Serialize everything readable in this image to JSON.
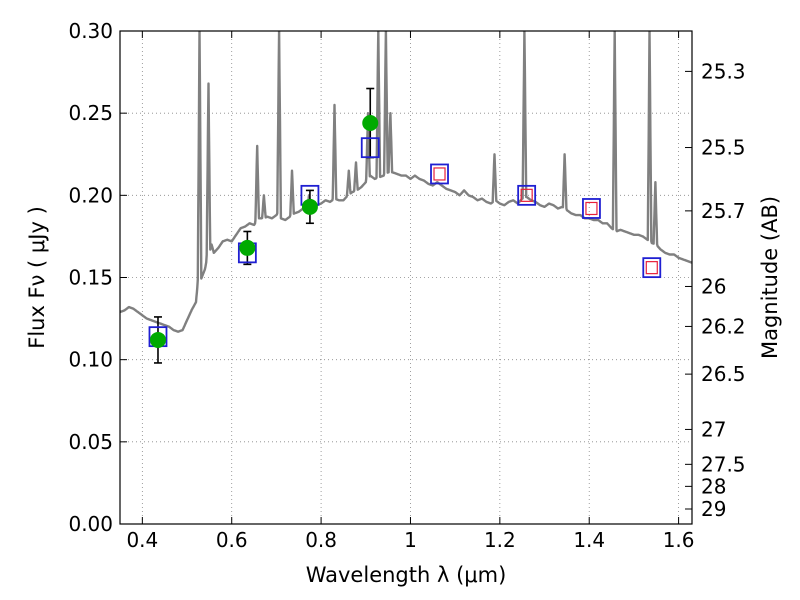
{
  "chart_data": {
    "type": "scatter",
    "title": "",
    "xlabel": "Wavelength  λ (μm)",
    "ylabel": "Flux  Fν  ( μJy )",
    "y2label": "Magnitude (AB)",
    "xlim": [
      0.35,
      1.63
    ],
    "ylim": [
      0.0,
      0.3
    ],
    "grid": true,
    "x_ticks": [
      0.4,
      0.6,
      0.8,
      1.0,
      1.2,
      1.4,
      1.6
    ],
    "x_tick_labels": [
      "0.4",
      "0.6",
      "0.8",
      "1",
      "1.2",
      "1.4",
      "1.6"
    ],
    "y_ticks": [
      0.0,
      0.05,
      0.1,
      0.15,
      0.2,
      0.25,
      0.3
    ],
    "y_tick_labels": [
      "0.00",
      "0.05",
      "0.10",
      "0.15",
      "0.20",
      "0.25",
      "0.30"
    ],
    "y2_ticks": [
      {
        "label": "25.3",
        "mag": 25.3
      },
      {
        "label": "25.5",
        "mag": 25.5
      },
      {
        "label": "25.7",
        "mag": 25.7
      },
      {
        "label": "26",
        "mag": 26.0
      },
      {
        "label": "26.2",
        "mag": 26.2
      },
      {
        "label": "26.5",
        "mag": 26.5
      },
      {
        "label": "27",
        "mag": 27.0
      },
      {
        "label": "27.5",
        "mag": 27.5
      },
      {
        "label": "28",
        "mag": 28.0
      },
      {
        "label": "29",
        "mag": 29.0
      }
    ],
    "colors": {
      "observed": "#00aa00",
      "errorbar": "#000000",
      "model_box": "#1f1fd2",
      "model_inner": "#e8203a",
      "spectrum": "#808080",
      "grid": "#888888"
    },
    "series": [
      {
        "name": "observed",
        "points": [
          {
            "x": 0.435,
            "y": 0.112,
            "err": 0.014
          },
          {
            "x": 0.635,
            "y": 0.168,
            "err": 0.01
          },
          {
            "x": 0.775,
            "y": 0.193,
            "err": 0.01
          },
          {
            "x": 0.91,
            "y": 0.244,
            "err": 0.021
          }
        ]
      },
      {
        "name": "model",
        "points": [
          {
            "x": 0.435,
            "y": 0.114,
            "inner": false
          },
          {
            "x": 0.635,
            "y": 0.165,
            "inner": false
          },
          {
            "x": 0.775,
            "y": 0.2,
            "inner": false
          },
          {
            "x": 0.91,
            "y": 0.229,
            "inner": false
          },
          {
            "x": 1.065,
            "y": 0.213,
            "inner": true
          },
          {
            "x": 1.26,
            "y": 0.2,
            "inner": true
          },
          {
            "x": 1.405,
            "y": 0.192,
            "inner": true
          },
          {
            "x": 1.54,
            "y": 0.156,
            "inner": true
          }
        ]
      },
      {
        "name": "spectrum",
        "x": [
          0.35,
          0.36,
          0.37,
          0.38,
          0.39,
          0.4,
          0.41,
          0.42,
          0.43,
          0.44,
          0.45,
          0.46,
          0.47,
          0.48,
          0.49,
          0.5,
          0.51,
          0.52,
          0.525,
          0.53,
          0.54,
          0.545,
          0.55,
          0.555,
          0.56,
          0.57,
          0.58,
          0.59,
          0.6,
          0.61,
          0.62,
          0.63,
          0.64,
          0.65,
          0.655,
          0.66,
          0.67,
          0.68,
          0.69,
          0.7,
          0.705,
          0.71,
          0.72,
          0.73,
          0.74,
          0.75,
          0.76,
          0.77,
          0.78,
          0.79,
          0.8,
          0.81,
          0.82,
          0.83,
          0.84,
          0.85,
          0.86,
          0.87,
          0.88,
          0.89,
          0.9,
          0.91,
          0.92,
          0.93,
          0.94,
          0.95,
          0.96,
          0.97,
          0.98,
          0.99,
          1.0,
          1.01,
          1.02,
          1.03,
          1.04,
          1.05,
          1.06,
          1.07,
          1.08,
          1.09,
          1.1,
          1.11,
          1.12,
          1.13,
          1.14,
          1.15,
          1.16,
          1.17,
          1.18,
          1.19,
          1.2,
          1.21,
          1.22,
          1.23,
          1.24,
          1.25,
          1.26,
          1.27,
          1.28,
          1.29,
          1.3,
          1.31,
          1.32,
          1.33,
          1.34,
          1.35,
          1.36,
          1.37,
          1.38,
          1.39,
          1.4,
          1.41,
          1.42,
          1.43,
          1.44,
          1.45,
          1.46,
          1.47,
          1.48,
          1.49,
          1.5,
          1.51,
          1.52,
          1.53,
          1.54,
          1.55,
          1.56,
          1.57,
          1.58,
          1.59,
          1.6,
          1.61,
          1.62,
          1.63
        ],
        "y": [
          0.129,
          0.13,
          0.132,
          0.131,
          0.129,
          0.127,
          0.125,
          0.124,
          0.123,
          0.122,
          0.121,
          0.12,
          0.118,
          0.117,
          0.118,
          0.124,
          0.13,
          0.135,
          0.15,
          0.148,
          0.155,
          0.162,
          0.165,
          0.17,
          0.165,
          0.168,
          0.172,
          0.173,
          0.172,
          0.176,
          0.18,
          0.181,
          0.183,
          0.182,
          0.184,
          0.186,
          0.186,
          0.187,
          0.186,
          0.188,
          0.19,
          0.186,
          0.185,
          0.187,
          0.189,
          0.19,
          0.192,
          0.192,
          0.193,
          0.194,
          0.195,
          0.197,
          0.196,
          0.198,
          0.197,
          0.197,
          0.2,
          0.202,
          0.203,
          0.205,
          0.208,
          0.212,
          0.21,
          0.211,
          0.212,
          0.214,
          0.214,
          0.213,
          0.212,
          0.212,
          0.21,
          0.212,
          0.21,
          0.209,
          0.207,
          0.206,
          0.208,
          0.206,
          0.204,
          0.203,
          0.202,
          0.2,
          0.203,
          0.2,
          0.199,
          0.197,
          0.198,
          0.196,
          0.195,
          0.197,
          0.195,
          0.194,
          0.196,
          0.197,
          0.195,
          0.198,
          0.199,
          0.197,
          0.196,
          0.194,
          0.193,
          0.195,
          0.194,
          0.192,
          0.193,
          0.191,
          0.189,
          0.188,
          0.188,
          0.186,
          0.186,
          0.185,
          0.185,
          0.183,
          0.183,
          0.18,
          0.178,
          0.179,
          0.178,
          0.177,
          0.176,
          0.176,
          0.175,
          0.173,
          0.171,
          0.17,
          0.167,
          0.165,
          0.164,
          0.164,
          0.162,
          0.161,
          0.16,
          0.159
        ],
        "lines": [
          {
            "x": 0.528,
            "peak": 0.3,
            "w": 0.004
          },
          {
            "x": 0.548,
            "peak": 0.268,
            "w": 0.004
          },
          {
            "x": 0.657,
            "peak": 0.23,
            "w": 0.004
          },
          {
            "x": 0.672,
            "peak": 0.2,
            "w": 0.004
          },
          {
            "x": 0.706,
            "peak": 0.3,
            "w": 0.004
          },
          {
            "x": 0.735,
            "peak": 0.215,
            "w": 0.004
          },
          {
            "x": 0.773,
            "peak": 0.2,
            "w": 0.004
          },
          {
            "x": 0.83,
            "peak": 0.255,
            "w": 0.004
          },
          {
            "x": 0.862,
            "peak": 0.215,
            "w": 0.004
          },
          {
            "x": 0.878,
            "peak": 0.22,
            "w": 0.004
          },
          {
            "x": 0.905,
            "peak": 0.25,
            "w": 0.004
          },
          {
            "x": 0.928,
            "peak": 0.3,
            "w": 0.004
          },
          {
            "x": 0.945,
            "peak": 0.3,
            "w": 0.004
          },
          {
            "x": 0.955,
            "peak": 0.25,
            "w": 0.004
          },
          {
            "x": 1.188,
            "peak": 0.225,
            "w": 0.004
          },
          {
            "x": 1.255,
            "peak": 0.3,
            "w": 0.004
          },
          {
            "x": 1.345,
            "peak": 0.225,
            "w": 0.004
          },
          {
            "x": 1.457,
            "peak": 0.3,
            "w": 0.004
          },
          {
            "x": 1.535,
            "peak": 0.3,
            "w": 0.004
          },
          {
            "x": 1.548,
            "peak": 0.208,
            "w": 0.004
          }
        ]
      }
    ]
  }
}
